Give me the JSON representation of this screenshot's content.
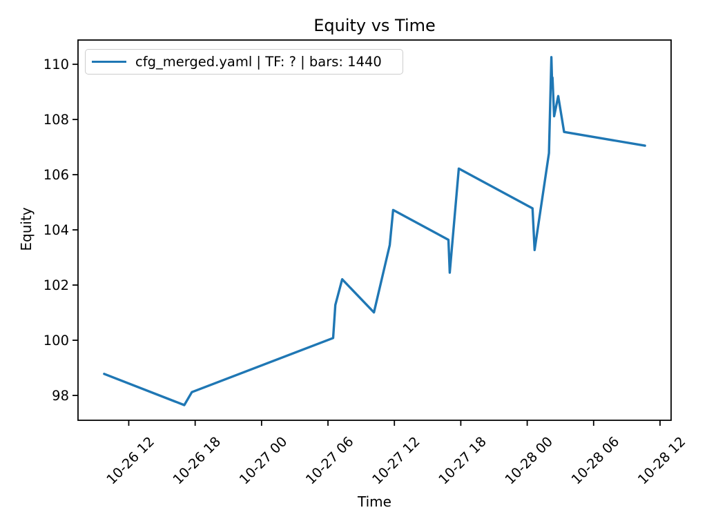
{
  "chart_data": {
    "type": "line",
    "title": "Equity vs Time",
    "xlabel": "Time",
    "ylabel": "Equity",
    "grid": false,
    "legend_position": "upper left",
    "line_color": "#1f77b4",
    "axis_color": "#000000",
    "legend_edge_color": "#cccccc",
    "x_ticks": [
      "10-26 12",
      "10-26 18",
      "10-27 00",
      "10-27 06",
      "10-27 12",
      "10-27 18",
      "10-28 00",
      "10-28 06",
      "10-28 12"
    ],
    "y_ticks": [
      98,
      100,
      102,
      104,
      106,
      108,
      110
    ],
    "xlim": [
      "10-26 07:25",
      "10-28 13:00"
    ],
    "ylim": [
      97.1,
      110.88
    ],
    "series": [
      {
        "name": "cfg_merged.yaml | TF: ? | bars: 1440",
        "points": [
          [
            "10-26 09:47",
            98.78
          ],
          [
            "10-26 17:01",
            97.65
          ],
          [
            "10-26 17:42",
            98.12
          ],
          [
            "10-27 06:28",
            100.08
          ],
          [
            "10-27 06:40",
            101.28
          ],
          [
            "10-27 07:17",
            102.21
          ],
          [
            "10-27 10:09",
            101.01
          ],
          [
            "10-27 11:35",
            103.45
          ],
          [
            "10-27 11:53",
            104.72
          ],
          [
            "10-27 16:53",
            103.64
          ],
          [
            "10-27 17:00",
            102.45
          ],
          [
            "10-27 17:49",
            106.22
          ],
          [
            "10-28 00:29",
            104.78
          ],
          [
            "10-28 00:40",
            103.27
          ],
          [
            "10-28 01:58",
            106.78
          ],
          [
            "10-28 02:11",
            110.26
          ],
          [
            "10-28 02:15",
            109.28
          ],
          [
            "10-28 02:17",
            109.52
          ],
          [
            "10-28 02:26",
            108.12
          ],
          [
            "10-28 02:48",
            108.85
          ],
          [
            "10-28 03:20",
            107.55
          ],
          [
            "10-28 10:38",
            107.05
          ]
        ]
      }
    ]
  }
}
